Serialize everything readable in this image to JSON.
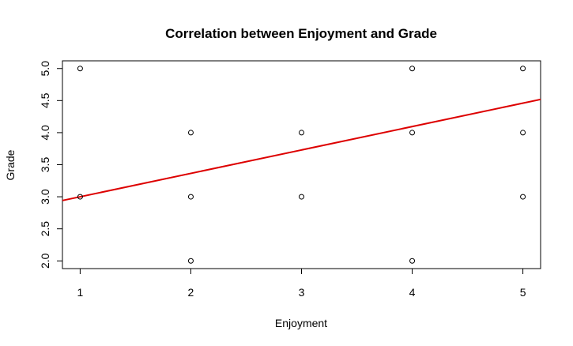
{
  "chart_data": {
    "type": "scatter",
    "title": "Correlation between Enjoyment and Grade",
    "xlabel": "Enjoyment",
    "ylabel": "Grade",
    "xlim": [
      0.84,
      5.16
    ],
    "ylim": [
      1.88,
      5.12
    ],
    "x_ticks": [
      1,
      2,
      3,
      4,
      5
    ],
    "y_ticks": [
      2.0,
      2.5,
      3.0,
      3.5,
      4.0,
      4.5,
      5.0
    ],
    "x_tick_labels": [
      "1",
      "2",
      "3",
      "4",
      "5"
    ],
    "y_tick_labels": [
      "2.0",
      "2.5",
      "3.0",
      "3.5",
      "4.0",
      "4.5",
      "5.0"
    ],
    "grid": false,
    "legend": "none",
    "points": [
      {
        "x": 1,
        "y": 5.0
      },
      {
        "x": 1,
        "y": 3.0
      },
      {
        "x": 2,
        "y": 4.0
      },
      {
        "x": 2,
        "y": 3.0
      },
      {
        "x": 2,
        "y": 2.0
      },
      {
        "x": 3,
        "y": 4.0
      },
      {
        "x": 3,
        "y": 3.0
      },
      {
        "x": 4,
        "y": 5.0
      },
      {
        "x": 4,
        "y": 4.0
      },
      {
        "x": 4,
        "y": 2.0
      },
      {
        "x": 5,
        "y": 5.0
      },
      {
        "x": 5,
        "y": 4.0
      },
      {
        "x": 5,
        "y": 3.0
      }
    ],
    "regression_line": {
      "intercept": 2.635,
      "slope": 0.365,
      "color": "#dd0000"
    },
    "point_color": "#000000"
  }
}
